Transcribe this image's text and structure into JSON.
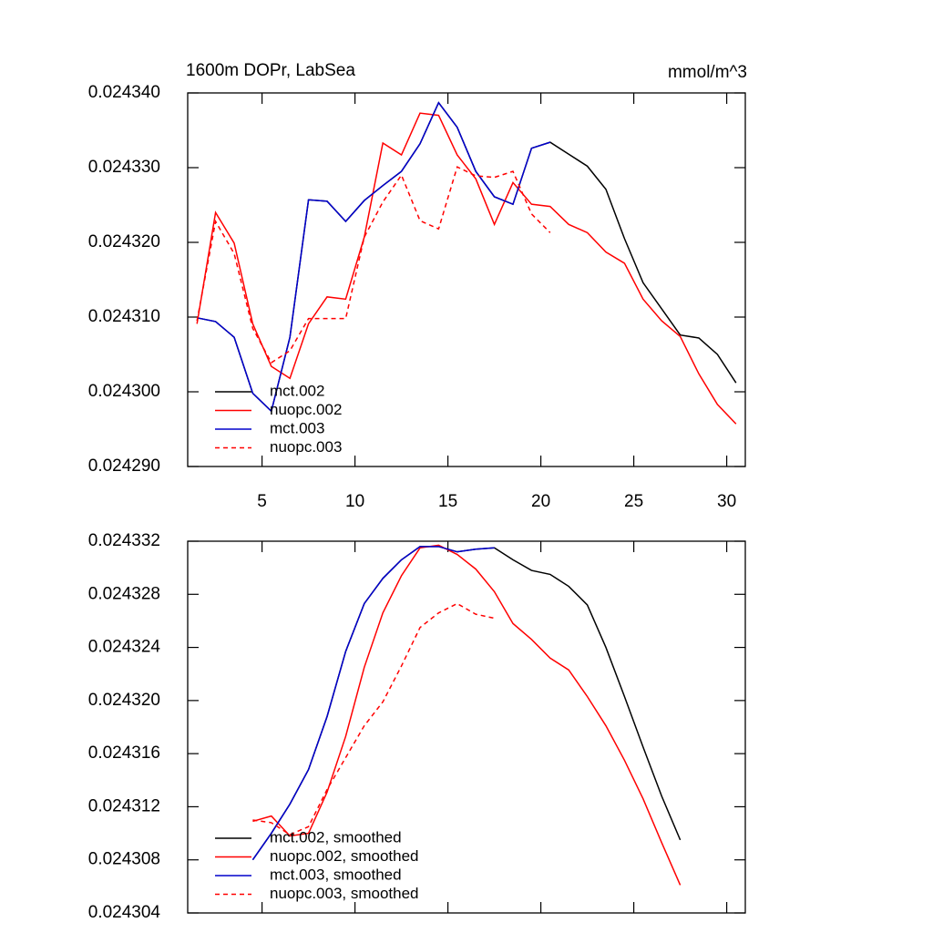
{
  "chart_data": [
    {
      "type": "line",
      "title": "1600m DOPr, LabSea",
      "units": "mmol/m^3",
      "x": [
        1.5,
        2.5,
        3.5,
        4.5,
        5.5,
        6.5,
        7.5,
        8.5,
        9.5,
        10.5,
        11.5,
        12.5,
        13.5,
        14.5,
        15.5,
        16.5,
        17.5,
        18.5,
        19.5,
        20.5,
        21.5,
        22.5,
        23.5,
        24.5,
        25.5,
        26.5,
        27.5,
        28.5,
        29.5,
        30.5
      ],
      "series": [
        {
          "name": "mct.002",
          "color": "#000000",
          "dashed": false,
          "values": [
            0.0243099,
            0.0243094,
            0.0243073,
            0.0242998,
            0.0242974,
            0.0243073,
            0.0243257,
            0.0243255,
            0.0243228,
            0.0243256,
            0.0243276,
            0.0243295,
            0.0243332,
            0.0243387,
            0.0243354,
            0.0243295,
            0.0243261,
            0.0243251,
            0.0243326,
            0.0243334,
            0.0243318,
            0.0243302,
            0.0243271,
            0.0243205,
            0.0243146,
            0.0243111,
            0.0243076,
            0.0243072,
            0.024305,
            0.0243012
          ]
        },
        {
          "name": "nuopc.002",
          "color": "#ff0000",
          "dashed": false,
          "values": [
            0.0243091,
            0.024324,
            0.0243199,
            0.0243091,
            0.0243034,
            0.0243018,
            0.0243091,
            0.0243127,
            0.0243124,
            0.0243207,
            0.0243333,
            0.0243317,
            0.0243373,
            0.024337,
            0.0243317,
            0.0243285,
            0.0243224,
            0.024328,
            0.0243251,
            0.0243248,
            0.0243224,
            0.0243213,
            0.0243187,
            0.0243172,
            0.0243124,
            0.0243095,
            0.0243074,
            0.0243024,
            0.0242983,
            0.0242957
          ]
        },
        {
          "name": "mct.003",
          "color": "#0000cc",
          "dashed": false,
          "values": [
            0.0243099,
            0.0243094,
            0.0243073,
            0.0242998,
            0.0242974,
            0.0243073,
            0.0243257,
            0.0243255,
            0.0243228,
            0.0243256,
            0.0243276,
            0.0243295,
            0.0243332,
            0.0243387,
            0.0243354,
            0.0243295,
            0.0243261,
            0.0243251,
            0.0243326,
            0.0243334,
            null,
            null,
            null,
            null,
            null,
            null,
            null,
            null,
            null,
            null
          ]
        },
        {
          "name": "nuopc.003",
          "color": "#ff0000",
          "dashed": true,
          "values": [
            0.0243095,
            0.0243228,
            0.0243185,
            0.0243085,
            0.0243039,
            0.0243055,
            0.0243098,
            0.0243098,
            0.0243098,
            0.0243207,
            0.0243254,
            0.024329,
            0.0243229,
            0.0243218,
            0.0243301,
            0.0243289,
            0.0243287,
            0.0243295,
            0.0243238,
            0.0243213,
            null,
            null,
            null,
            null,
            null,
            null,
            null,
            null,
            null,
            null
          ]
        }
      ],
      "xlim": [
        1,
        31
      ],
      "xticks": [
        5,
        10,
        15,
        20,
        25,
        30
      ],
      "show_xtick_labels": true,
      "ylim": [
        0.02429,
        0.02434
      ],
      "yticks": [
        {
          "value": 0.02429,
          "label": "0.024290"
        },
        {
          "value": 0.0243,
          "label": "0.024300"
        },
        {
          "value": 0.02431,
          "label": "0.024310"
        },
        {
          "value": 0.02432,
          "label": "0.024320"
        },
        {
          "value": 0.02433,
          "label": "0.024330"
        },
        {
          "value": 0.02434,
          "label": "0.024340"
        }
      ],
      "legend": "lower left"
    },
    {
      "type": "line",
      "x": [
        4.5,
        5.5,
        6.5,
        7.5,
        8.5,
        9.5,
        10.5,
        11.5,
        12.5,
        13.5,
        14.5,
        15.5,
        16.5,
        17.5,
        18.5,
        19.5,
        20.5,
        21.5,
        22.5,
        23.5,
        24.5,
        25.5,
        26.5,
        27.5
      ],
      "series": [
        {
          "name": "mct.002, smoothed",
          "color": "#000000",
          "dashed": false,
          "values": [
            0.024308,
            0.02431,
            0.0243122,
            0.0243148,
            0.0243188,
            0.0243237,
            0.0243273,
            0.0243292,
            0.0243306,
            0.0243316,
            0.0243316,
            0.0243312,
            0.0243314,
            0.0243315,
            0.0243306,
            0.0243298,
            0.0243295,
            0.0243286,
            0.0243272,
            0.024324,
            0.0243203,
            0.0243165,
            0.0243128,
            0.0243095
          ]
        },
        {
          "name": "nuopc.002, smoothed",
          "color": "#ff0000",
          "dashed": false,
          "values": [
            0.0243109,
            0.0243113,
            0.0243098,
            0.02431,
            0.0243131,
            0.0243173,
            0.0243225,
            0.0243266,
            0.0243294,
            0.0243315,
            0.0243317,
            0.024331,
            0.0243299,
            0.0243282,
            0.0243258,
            0.0243246,
            0.0243232,
            0.0243223,
            0.0243203,
            0.0243181,
            0.0243155,
            0.0243126,
            0.0243093,
            0.0243061
          ]
        },
        {
          "name": "mct.003, smoothed",
          "color": "#0000cc",
          "dashed": false,
          "values": [
            0.024308,
            0.02431,
            0.0243122,
            0.0243148,
            0.0243188,
            0.0243237,
            0.0243273,
            0.0243292,
            0.0243306,
            0.0243316,
            0.0243316,
            0.0243312,
            0.0243314,
            0.0243315,
            null,
            null,
            null,
            null,
            null,
            null,
            null,
            null,
            null,
            null
          ]
        },
        {
          "name": "nuopc.003, smoothed",
          "color": "#ff0000",
          "dashed": true,
          "values": [
            0.024311,
            0.0243108,
            0.0243099,
            0.0243105,
            0.0243133,
            0.0243157,
            0.0243181,
            0.0243199,
            0.0243226,
            0.0243255,
            0.0243266,
            0.0243273,
            0.0243265,
            0.0243262,
            null,
            null,
            null,
            null,
            null,
            null,
            null,
            null,
            null,
            null
          ]
        }
      ],
      "xlim": [
        1,
        31
      ],
      "xticks": [
        5,
        10,
        15,
        20,
        25,
        30
      ],
      "show_xtick_labels": false,
      "ylim": [
        0.024304,
        0.024332
      ],
      "yticks": [
        0.024304,
        0.024308,
        0.024312,
        0.024316,
        {
          "value": 0.02432,
          "label": "0.024320"
        },
        0.024324,
        0.024328,
        0.024332
      ],
      "legend": "lower left"
    }
  ]
}
